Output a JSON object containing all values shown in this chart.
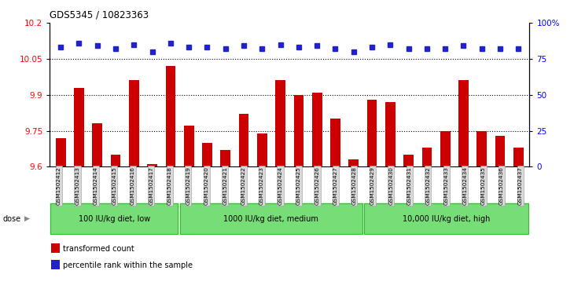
{
  "title": "GDS5345 / 10823363",
  "categories": [
    "GSM1502412",
    "GSM1502413",
    "GSM1502414",
    "GSM1502415",
    "GSM1502416",
    "GSM1502417",
    "GSM1502418",
    "GSM1502419",
    "GSM1502420",
    "GSM1502421",
    "GSM1502422",
    "GSM1502423",
    "GSM1502424",
    "GSM1502425",
    "GSM1502426",
    "GSM1502427",
    "GSM1502428",
    "GSM1502429",
    "GSM1502430",
    "GSM1502431",
    "GSM1502432",
    "GSM1502433",
    "GSM1502434",
    "GSM1502435",
    "GSM1502436",
    "GSM1502437"
  ],
  "bar_values": [
    9.72,
    9.93,
    9.78,
    9.65,
    9.96,
    9.61,
    10.02,
    9.77,
    9.7,
    9.67,
    9.82,
    9.74,
    9.96,
    9.9,
    9.91,
    9.8,
    9.63,
    9.88,
    9.87,
    9.65,
    9.68,
    9.75,
    9.96,
    9.75,
    9.73,
    9.68
  ],
  "percentile_values": [
    83,
    86,
    84,
    82,
    85,
    80,
    86,
    83,
    83,
    82,
    84,
    82,
    85,
    83,
    84,
    82,
    80,
    83,
    85,
    82,
    82,
    82,
    84,
    82,
    82,
    82
  ],
  "ylim_left": [
    9.6,
    10.2
  ],
  "ylim_right": [
    0,
    100
  ],
  "yticks_left": [
    9.6,
    9.75,
    9.9,
    10.05,
    10.2
  ],
  "yticks_right": [
    0,
    25,
    50,
    75,
    100
  ],
  "grid_lines": [
    9.75,
    9.9,
    10.05
  ],
  "bar_color": "#CC0000",
  "dot_color": "#2222CC",
  "plot_bg_color": "#FFFFFF",
  "xticklabel_bg": "#D8D8D8",
  "groups": [
    {
      "label": "100 IU/kg diet, low",
      "start": 0,
      "end": 7
    },
    {
      "label": "1000 IU/kg diet, medium",
      "start": 7,
      "end": 17
    },
    {
      "label": "10,000 IU/kg diet, high",
      "start": 17,
      "end": 26
    }
  ],
  "group_fill_color": "#77DD77",
  "group_border_color": "#33BB33",
  "dose_strip_bg": "#CCFFCC",
  "legend_items": [
    {
      "label": "transformed count",
      "color": "#CC0000"
    },
    {
      "label": "percentile rank within the sample",
      "color": "#2222CC"
    }
  ]
}
